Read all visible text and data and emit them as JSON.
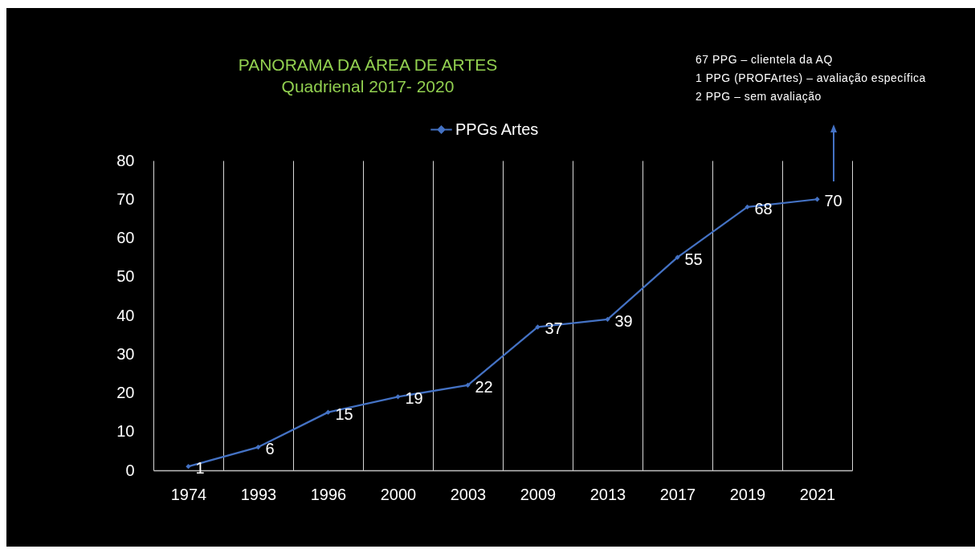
{
  "chart_data": {
    "type": "line",
    "title": "PANORAMA DA ÁREA DE ARTES",
    "subtitle": "Quadrienal 2017- 2020",
    "categories": [
      "1974",
      "1993",
      "1996",
      "2000",
      "2003",
      "2009",
      "2013",
      "2017",
      "2019",
      "2021"
    ],
    "series": [
      {
        "name": "PPGs Artes",
        "color": "#4472c4",
        "values": [
          1,
          6,
          15,
          19,
          22,
          37,
          39,
          55,
          68,
          70
        ]
      }
    ],
    "ylim": [
      0,
      80
    ],
    "yticks": [
      0,
      10,
      20,
      30,
      40,
      50,
      60,
      70,
      80
    ],
    "grid": "x",
    "legend": "top",
    "marker": "diamond",
    "line_style": "solid",
    "data_labels": true,
    "annotations": [
      "67 PPG – clientela da AQ",
      "1 PPG (PROFArtes) – avaliação específica",
      "2 PPG – sem avaliação"
    ]
  }
}
